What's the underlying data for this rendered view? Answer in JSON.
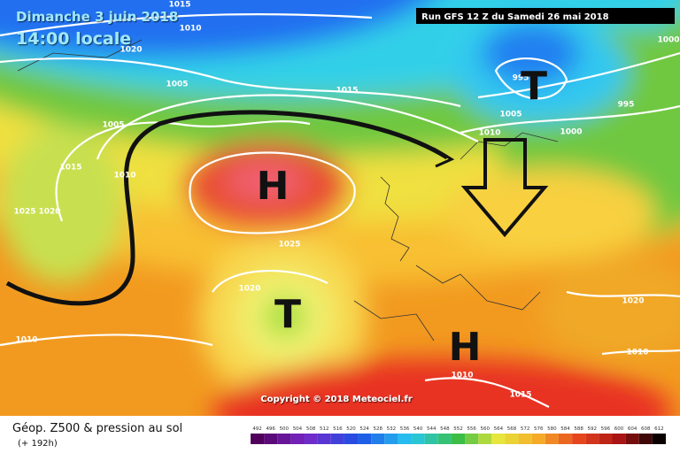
{
  "header": {
    "date": "Dimanche 3 juin 2018",
    "time": "14:00 locale",
    "run": "Run GFS 12 Z du Samedi 26 mai 2018"
  },
  "systems": [
    {
      "label": "H"
    },
    {
      "label": "T"
    },
    {
      "label": "T"
    },
    {
      "label": "H"
    }
  ],
  "isobar_labels": [
    1015,
    1010,
    1020,
    1005,
    1015,
    1005,
    1015,
    1010,
    1025,
    1020,
    1025,
    1020,
    1010,
    995,
    1005,
    1010,
    1000,
    995,
    1000,
    1020,
    1010,
    1010,
    1015
  ],
  "footer": {
    "copyright": "Copyright © 2018 Meteociel.fr",
    "title": "Géop. Z500 & pression au sol",
    "lead_time": "(+ 192h)"
  },
  "scale": {
    "ticks": [
      492,
      496,
      500,
      504,
      508,
      512,
      516,
      520,
      524,
      528,
      532,
      536,
      540,
      544,
      548,
      552,
      556,
      560,
      564,
      568,
      572,
      576,
      580,
      584,
      588,
      592,
      596,
      600,
      604,
      608,
      612
    ]
  }
}
